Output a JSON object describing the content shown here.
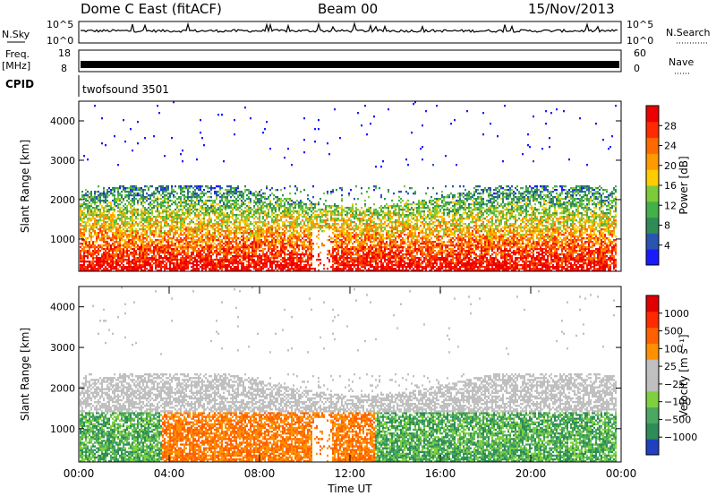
{
  "header": {
    "station": "Dome C East (fitACF)",
    "beam": "Beam 00",
    "date": "15/Nov/2013"
  },
  "status_panels": {
    "nsky_label": "N.Sky",
    "nsky_ticks": [
      "10^5",
      "10^0"
    ],
    "nsky_right_ticks": [
      "10^5",
      "10^0"
    ],
    "nsearch_label": "N.Search",
    "freq_label": "Freq.",
    "freq_unit": "[MHz]",
    "freq_ticks": [
      "18",
      "8"
    ],
    "nave_ticks": [
      "60",
      "0"
    ],
    "nave_label": "Nave",
    "cpid_label": "CPID",
    "cpid_value": "twofsound 3501"
  },
  "colors": {
    "power": [
      "#1a1aff",
      "#2a54b0",
      "#2f8c56",
      "#44b04a",
      "#7ecb3a",
      "#ffcc00",
      "#ff9a00",
      "#ff6a00",
      "#ff2a00",
      "#ee0000"
    ],
    "velocity": [
      "#2040c0",
      "#2e8c58",
      "#4aa860",
      "#7fd040",
      "#bfbfbf",
      "#c0c0c0",
      "#ff9000",
      "#ff6000",
      "#ff2a00",
      "#e00000"
    ]
  },
  "chart_data": [
    {
      "type": "heatmap",
      "name": "power",
      "xlabel": "",
      "ylabel": "Slant Range [km]",
      "yticks": [
        "4000",
        "3000",
        "2000",
        "1000"
      ],
      "ylim": [
        180,
        4500
      ],
      "colorbar_label": "Power [dB]",
      "colorbar_ticks": [
        "28",
        "24",
        "20",
        "16",
        "12",
        "8",
        "4"
      ]
    },
    {
      "type": "heatmap",
      "name": "velocity",
      "xlabel": "Time UT",
      "ylabel": "Slant Range [km]",
      "xticks": [
        "00:00",
        "04:00",
        "08:00",
        "12:00",
        "16:00",
        "20:00",
        "00:00"
      ],
      "yticks": [
        "4000",
        "3000",
        "2000",
        "1000"
      ],
      "ylim": [
        180,
        4500
      ],
      "colorbar_label": "Velocity [m s⁻¹]",
      "colorbar_ticks": [
        "1000",
        "500",
        "100",
        "25",
        "−25",
        "−100",
        "−500",
        "−1000"
      ]
    }
  ]
}
